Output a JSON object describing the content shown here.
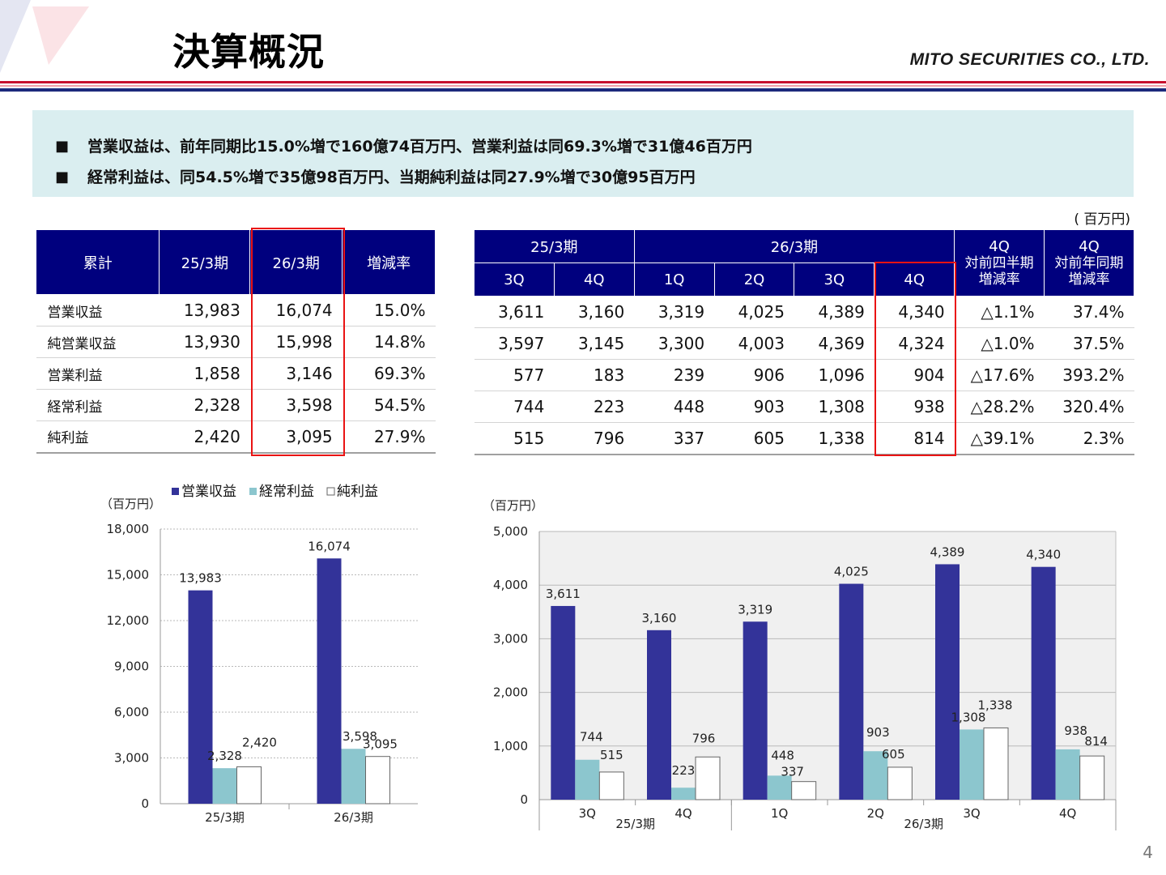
{
  "header": {
    "title": "決算概況",
    "company": "MITO SECURITIES CO., LTD."
  },
  "summary": {
    "bullet": "■",
    "lines": [
      "営業収益は、前年同期比15.0%増で160億74百万円、営業利益は同69.3%増で31億46百万円",
      "経常利益は、同54.5%増で35億98百万円、当期純利益は同27.9%増で30億95百万円"
    ]
  },
  "unit_note": "( 百万円)",
  "cumulative_table": {
    "headers": [
      "累計",
      "25/3期",
      "26/3期",
      "増減率"
    ],
    "rows": [
      {
        "label": "営業収益",
        "v1": "13,983",
        "v2": "16,074",
        "rate": "15.0%"
      },
      {
        "label": "純営業収益",
        "v1": "13,930",
        "v2": "15,998",
        "rate": "14.8%"
      },
      {
        "label": "営業利益",
        "v1": "1,858",
        "v2": "3,146",
        "rate": "69.3%"
      },
      {
        "label": "経常利益",
        "v1": "2,328",
        "v2": "3,598",
        "rate": "54.5%"
      },
      {
        "label": "純利益",
        "v1": "2,420",
        "v2": "3,095",
        "rate": "27.9%"
      }
    ]
  },
  "quarterly_table": {
    "fy_prev": "25/3期",
    "fy_curr": "26/3期",
    "qoq_header": [
      "4Q",
      "対前四半期",
      "増減率"
    ],
    "yoy_header": [
      "4Q",
      "対前年同期",
      "増減率"
    ],
    "quarters": [
      "3Q",
      "4Q",
      "1Q",
      "2Q",
      "3Q",
      "4Q"
    ],
    "rows": [
      [
        "3,611",
        "3,160",
        "3,319",
        "4,025",
        "4,389",
        "4,340",
        "△1.1%",
        "37.4%"
      ],
      [
        "3,597",
        "3,145",
        "3,300",
        "4,003",
        "4,369",
        "4,324",
        "△1.0%",
        "37.5%"
      ],
      [
        "577",
        "183",
        "239",
        "906",
        "1,096",
        "904",
        "△17.6%",
        "393.2%"
      ],
      [
        "744",
        "223",
        "448",
        "903",
        "1,308",
        "938",
        "△28.2%",
        "320.4%"
      ],
      [
        "515",
        "796",
        "337",
        "605",
        "1,338",
        "814",
        "△39.1%",
        "2.3%"
      ]
    ]
  },
  "chart_data": [
    {
      "type": "bar",
      "ylabel": "（百万円）",
      "ylim": [
        0,
        18000
      ],
      "yticks": [
        0,
        3000,
        6000,
        9000,
        12000,
        15000,
        18000
      ],
      "ytick_labels": [
        "0",
        "3,000",
        "6,000",
        "9,000",
        "12,000",
        "15,000",
        "18,000"
      ],
      "categories": [
        "25/3期",
        "26/3期"
      ],
      "legend_position": "top",
      "grid": true,
      "series": [
        {
          "name": "営業収益",
          "color": "#333399",
          "values": [
            13983,
            16074
          ],
          "labels": [
            "13,983",
            "16,074"
          ]
        },
        {
          "name": "経常利益",
          "color": "#8cc6ce",
          "values": [
            2328,
            3598
          ],
          "labels": [
            "2,328",
            "3,598"
          ]
        },
        {
          "name": "純利益",
          "color": "#ffffff",
          "values": [
            2420,
            3095
          ],
          "labels": [
            "2,420",
            "3,095"
          ]
        }
      ]
    },
    {
      "type": "bar",
      "ylabel": "（百万円）",
      "ylim": [
        0,
        5000
      ],
      "yticks": [
        0,
        1000,
        2000,
        3000,
        4000,
        5000
      ],
      "ytick_labels": [
        "0",
        "1,000",
        "2,000",
        "3,000",
        "4,000",
        "5,000"
      ],
      "categories": [
        "3Q",
        "4Q",
        "1Q",
        "2Q",
        "3Q",
        "4Q"
      ],
      "groups": [
        {
          "label": "25/3期",
          "count": 2
        },
        {
          "label": "26/3期",
          "count": 4
        }
      ],
      "grid": true,
      "series": [
        {
          "name": "営業収益",
          "color": "#333399",
          "values": [
            3611,
            3160,
            3319,
            4025,
            4389,
            4340
          ],
          "labels": [
            "3,611",
            "3,160",
            "3,319",
            "4,025",
            "4,389",
            "4,340"
          ]
        },
        {
          "name": "経常利益",
          "color": "#8cc6ce",
          "values": [
            744,
            223,
            448,
            903,
            1308,
            938
          ],
          "labels": [
            "744",
            "223",
            "448",
            "903",
            "1,308",
            "938"
          ]
        },
        {
          "name": "純利益",
          "color": "#ffffff",
          "values": [
            515,
            796,
            337,
            605,
            1338,
            814
          ],
          "labels": [
            "515",
            "796",
            "337",
            "605",
            "1,338",
            "814"
          ]
        }
      ]
    }
  ],
  "page_number": "4"
}
